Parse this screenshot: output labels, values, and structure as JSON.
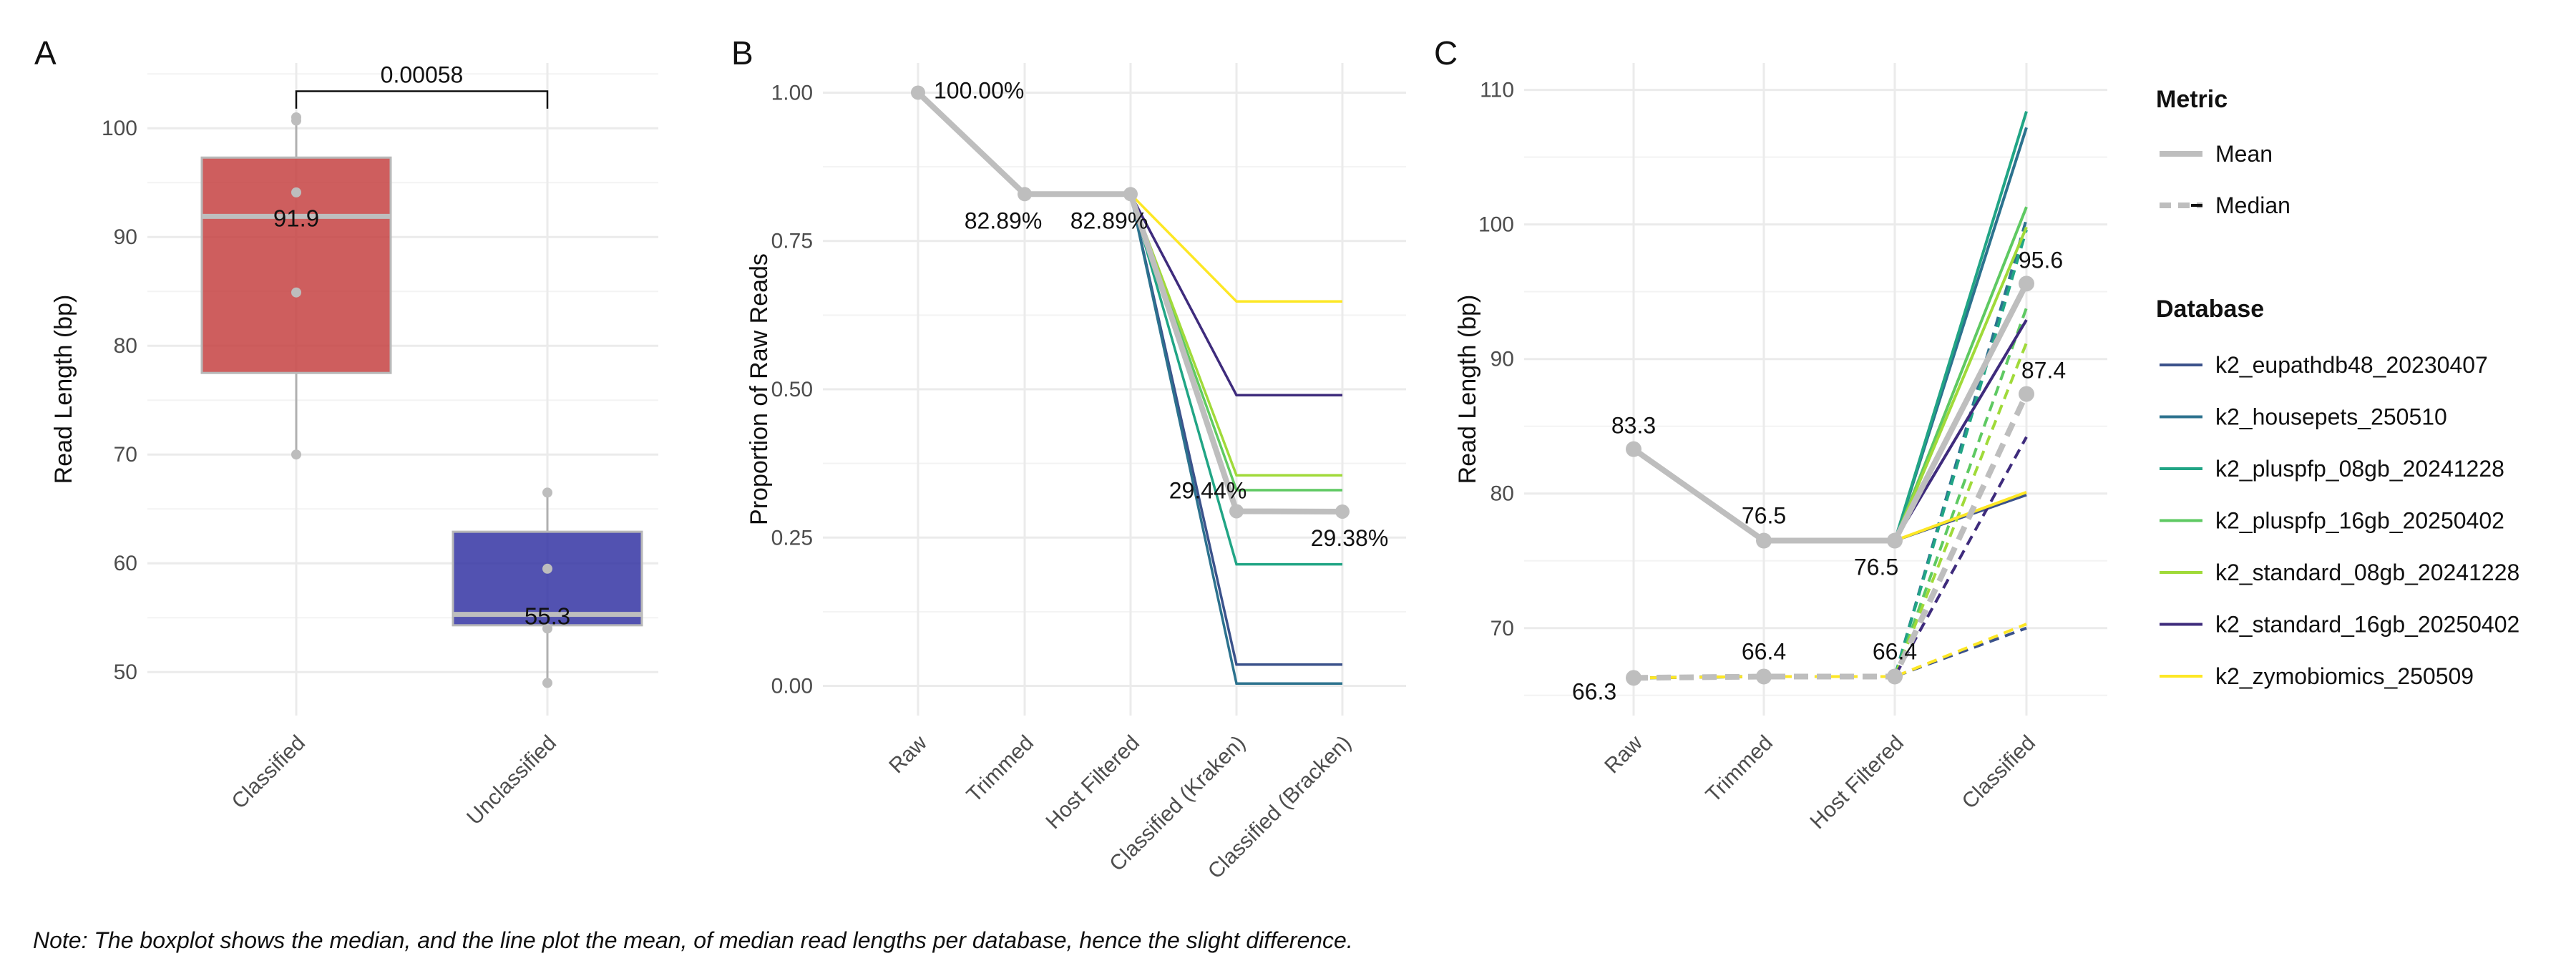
{
  "chart_data": [
    {
      "panel": "A",
      "type": "box",
      "ylabel": "Read Length (bp)",
      "ylim": [
        46,
        106
      ],
      "yticks": [
        50,
        60,
        70,
        80,
        90,
        100
      ],
      "categories": [
        "Classified",
        "Unclassified"
      ],
      "boxes": [
        {
          "name": "Classified",
          "color": "#c33b3b",
          "q1": 77.5,
          "median": 91.9,
          "q3": 97.3,
          "whisker_low": 70.0,
          "whisker_high": 101.0,
          "label": "91.9",
          "points": [
            70.0,
            84.9,
            94.1,
            100.7,
            101.0
          ]
        },
        {
          "name": "Unclassified",
          "color": "#2c2ca0",
          "q1": 54.3,
          "median": 55.3,
          "q3": 62.9,
          "whisker_low": 49.0,
          "whisker_high": 66.5,
          "label": "55.3",
          "points": [
            49.0,
            54.0,
            59.5,
            66.5
          ]
        }
      ],
      "annotation": {
        "text": "0.00058",
        "from": "Classified",
        "to": "Unclassified",
        "y": 103.4,
        "drop_to": 101.8
      }
    },
    {
      "panel": "B",
      "type": "line",
      "ylabel": "Proportion of Raw Reads",
      "ylim": [
        -0.05,
        1.05
      ],
      "yticks": [
        "0.00",
        "0.25",
        "0.50",
        "0.75",
        "1.00"
      ],
      "categories": [
        "Raw",
        "Trimmed",
        "Host Filtered",
        "Classified (Kraken)",
        "Classified (Bracken)"
      ],
      "summary": {
        "values": [
          1.0,
          0.8289,
          0.8289,
          0.2944,
          0.2938
        ],
        "labels": [
          "100.00%",
          "82.89%",
          "82.89%",
          "29.44%",
          "29.38%"
        ]
      },
      "series": [
        {
          "name": "k2_eupathdb48_20230407",
          "color": "#3b528b",
          "values": [
            1.0,
            0.8289,
            0.8289,
            0.036,
            0.036
          ]
        },
        {
          "name": "k2_housepets_250510",
          "color": "#2c728e",
          "values": [
            1.0,
            0.8289,
            0.8289,
            0.004,
            0.004
          ]
        },
        {
          "name": "k2_pluspfp_08gb_20241228",
          "color": "#21a585",
          "values": [
            1.0,
            0.8289,
            0.8289,
            0.205,
            0.205
          ]
        },
        {
          "name": "k2_pluspfp_16gb_20250402",
          "color": "#5ec962",
          "values": [
            1.0,
            0.8289,
            0.8289,
            0.33,
            0.33
          ]
        },
        {
          "name": "k2_standard_08gb_20241228",
          "color": "#a0da39",
          "values": [
            1.0,
            0.8289,
            0.8289,
            0.355,
            0.355
          ]
        },
        {
          "name": "k2_standard_16gb_20250402",
          "color": "#3e2b7c",
          "values": [
            1.0,
            0.8289,
            0.8289,
            0.49,
            0.49
          ]
        },
        {
          "name": "k2_zymobiomics_250509",
          "color": "#fde725",
          "values": [
            1.0,
            0.8289,
            0.8289,
            0.648,
            0.648
          ]
        }
      ]
    },
    {
      "panel": "C",
      "type": "line",
      "ylabel": "Read Length (bp)",
      "ylim": [
        63.5,
        112
      ],
      "yticks": [
        70,
        80,
        90,
        100,
        110
      ],
      "categories": [
        "Raw",
        "Trimmed",
        "Host Filtered",
        "Classified"
      ],
      "summary_mean": {
        "values": [
          83.3,
          76.5,
          76.5,
          95.6
        ],
        "labels": [
          "83.3",
          "76.5",
          "76.5",
          "95.6"
        ]
      },
      "summary_median": {
        "values": [
          66.3,
          66.4,
          66.4,
          87.4
        ],
        "labels": [
          "66.3",
          "66.4",
          "66.4",
          "87.4"
        ]
      },
      "series": [
        {
          "name": "k2_eupathdb48_20230407",
          "color": "#3b528b",
          "mean": [
            83.3,
            76.5,
            76.5,
            79.9
          ],
          "median": [
            66.3,
            66.4,
            66.4,
            70.0
          ]
        },
        {
          "name": "k2_housepets_250510",
          "color": "#2c728e",
          "mean": [
            83.3,
            76.5,
            76.5,
            107.2
          ],
          "median": [
            66.3,
            66.4,
            66.4,
            100.4
          ]
        },
        {
          "name": "k2_pluspfp_08gb_20241228",
          "color": "#21a585",
          "mean": [
            83.3,
            76.5,
            76.5,
            108.4
          ],
          "median": [
            66.3,
            66.4,
            66.4,
            99.6
          ]
        },
        {
          "name": "k2_pluspfp_16gb_20250402",
          "color": "#5ec962",
          "mean": [
            83.3,
            76.5,
            76.5,
            101.3
          ],
          "median": [
            66.3,
            66.4,
            66.4,
            93.8
          ]
        },
        {
          "name": "k2_standard_08gb_20241228",
          "color": "#a0da39",
          "mean": [
            83.3,
            76.5,
            76.5,
            99.8
          ],
          "median": [
            66.3,
            66.4,
            66.4,
            91.2
          ]
        },
        {
          "name": "k2_standard_16gb_20250402",
          "color": "#3e2b7c",
          "mean": [
            83.3,
            76.5,
            76.5,
            92.9
          ],
          "median": [
            66.3,
            66.4,
            66.4,
            84.2
          ]
        },
        {
          "name": "k2_zymobiomics_250509",
          "color": "#fde725",
          "mean": [
            83.3,
            76.5,
            76.5,
            80.1
          ],
          "median": [
            66.3,
            66.4,
            66.4,
            70.3
          ]
        }
      ]
    }
  ],
  "panel_letters": [
    "A",
    "B",
    "C"
  ],
  "legend": {
    "metric_title": "Metric",
    "metric_items": [
      "Mean",
      "Median"
    ],
    "database_title": "Database",
    "database_items": [
      {
        "name": "k2_eupathdb48_20230407",
        "color": "#3b528b"
      },
      {
        "name": "k2_housepets_250510",
        "color": "#2c728e"
      },
      {
        "name": "k2_pluspfp_08gb_20241228",
        "color": "#21a585"
      },
      {
        "name": "k2_pluspfp_16gb_20250402",
        "color": "#5ec962"
      },
      {
        "name": "k2_standard_08gb_20241228",
        "color": "#a0da39"
      },
      {
        "name": "k2_standard_16gb_20250402",
        "color": "#3e2b7c"
      },
      {
        "name": "k2_zymobiomics_250509",
        "color": "#fde725"
      }
    ]
  },
  "colors": {
    "summary_gray": "#bebebe",
    "grid": "#ebebeb",
    "axis_text": "#4d4d4d"
  },
  "note": "Note: The boxplot shows the median, and the line plot the mean, of median read lengths per database, hence the slight difference."
}
